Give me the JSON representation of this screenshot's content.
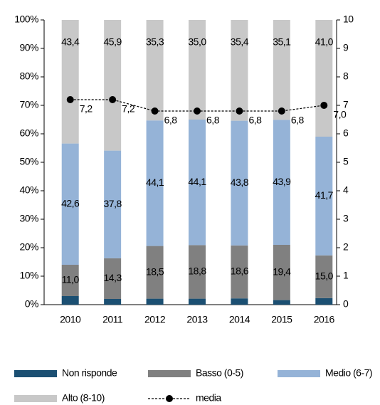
{
  "chart_data": {
    "type": "bar",
    "stacked": true,
    "categories": [
      "2010",
      "2011",
      "2012",
      "2013",
      "2014",
      "2015",
      "2016"
    ],
    "series": [
      {
        "name": "Non risponde",
        "color": "#1b4f72",
        "values": [
          3.0,
          2.0,
          2.1,
          2.1,
          2.2,
          1.6,
          2.3
        ]
      },
      {
        "name": "Basso (0-5)",
        "color": "#808080",
        "values": [
          11.0,
          14.3,
          18.5,
          18.8,
          18.6,
          19.4,
          15.0
        ],
        "value_labels": [
          "11,0",
          "14,3",
          "18,5",
          "18,8",
          "18,6",
          "19,4",
          "15,0"
        ]
      },
      {
        "name": "Medio (6-7)",
        "color": "#95b3d7",
        "values": [
          42.6,
          37.8,
          44.1,
          44.1,
          43.8,
          43.9,
          41.7
        ],
        "value_labels": [
          "42,6",
          "37,8",
          "44,1",
          "44,1",
          "43,8",
          "43,9",
          "41,7"
        ]
      },
      {
        "name": "Alto (8-10)",
        "color": "#c8c8c8",
        "values": [
          43.4,
          45.9,
          35.3,
          35.0,
          35.4,
          35.1,
          41.0
        ],
        "value_labels": [
          "43,4",
          "45,9",
          "35,3",
          "35,0",
          "35,4",
          "35,1",
          "41,0"
        ]
      },
      {
        "name": "media",
        "type": "line",
        "axis": "y2",
        "color": "#000000",
        "values": [
          7.2,
          7.2,
          6.8,
          6.8,
          6.8,
          6.8,
          7.0
        ],
        "value_labels": [
          "7,2",
          "7,2",
          "6,8",
          "6,8",
          "6,8",
          "6,8",
          "7,0"
        ]
      }
    ],
    "ylim": [
      0,
      100
    ],
    "yticks": [
      {
        "value": 0,
        "label": "0%"
      },
      {
        "value": 10,
        "label": "10%"
      },
      {
        "value": 20,
        "label": "20%"
      },
      {
        "value": 30,
        "label": "30%"
      },
      {
        "value": 40,
        "label": "40%"
      },
      {
        "value": 50,
        "label": "50%"
      },
      {
        "value": 60,
        "label": "60%"
      },
      {
        "value": 70,
        "label": "70%"
      },
      {
        "value": 80,
        "label": "80%"
      },
      {
        "value": 90,
        "label": "90%"
      },
      {
        "value": 100,
        "label": "100%"
      }
    ],
    "y2lim": [
      0,
      10
    ],
    "y2ticks": [
      0,
      1,
      2,
      3,
      4,
      5,
      6,
      7,
      8,
      9,
      10
    ],
    "legend": "bottom"
  }
}
